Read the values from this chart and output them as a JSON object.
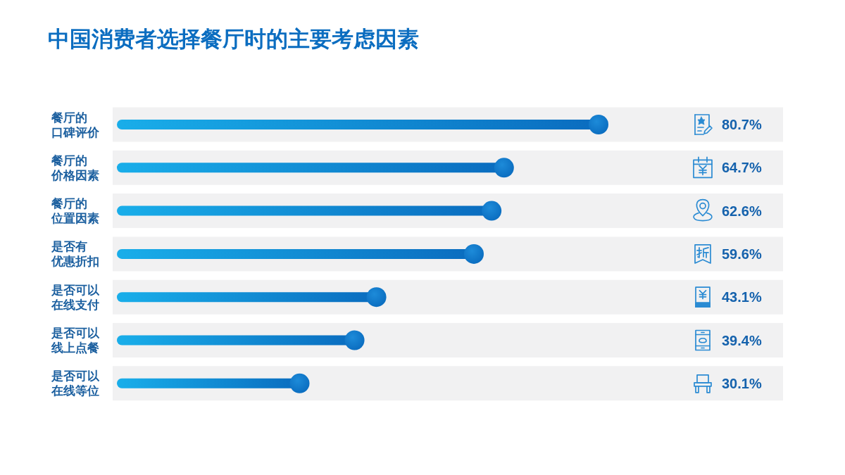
{
  "chart_data": {
    "type": "lollipop",
    "orientation": "horizontal",
    "title": "中国消费者选择餐厅时的主要考虑因素",
    "categories": [
      "餐厅的口碑评价",
      "餐厅的价格因素",
      "餐厅的位置因素",
      "是否有优惠折扣",
      "是否可以在线支付",
      "是否可以线上点餐",
      "是否可以在线等位"
    ],
    "values": [
      80.7,
      64.7,
      62.6,
      59.6,
      43.1,
      39.4,
      30.1
    ],
    "value_labels": [
      "80.7%",
      "64.7%",
      "62.6%",
      "59.6%",
      "43.1%",
      "39.4%",
      "30.1%"
    ],
    "color": "#0a6cbf",
    "grid": "y"
  }
}
